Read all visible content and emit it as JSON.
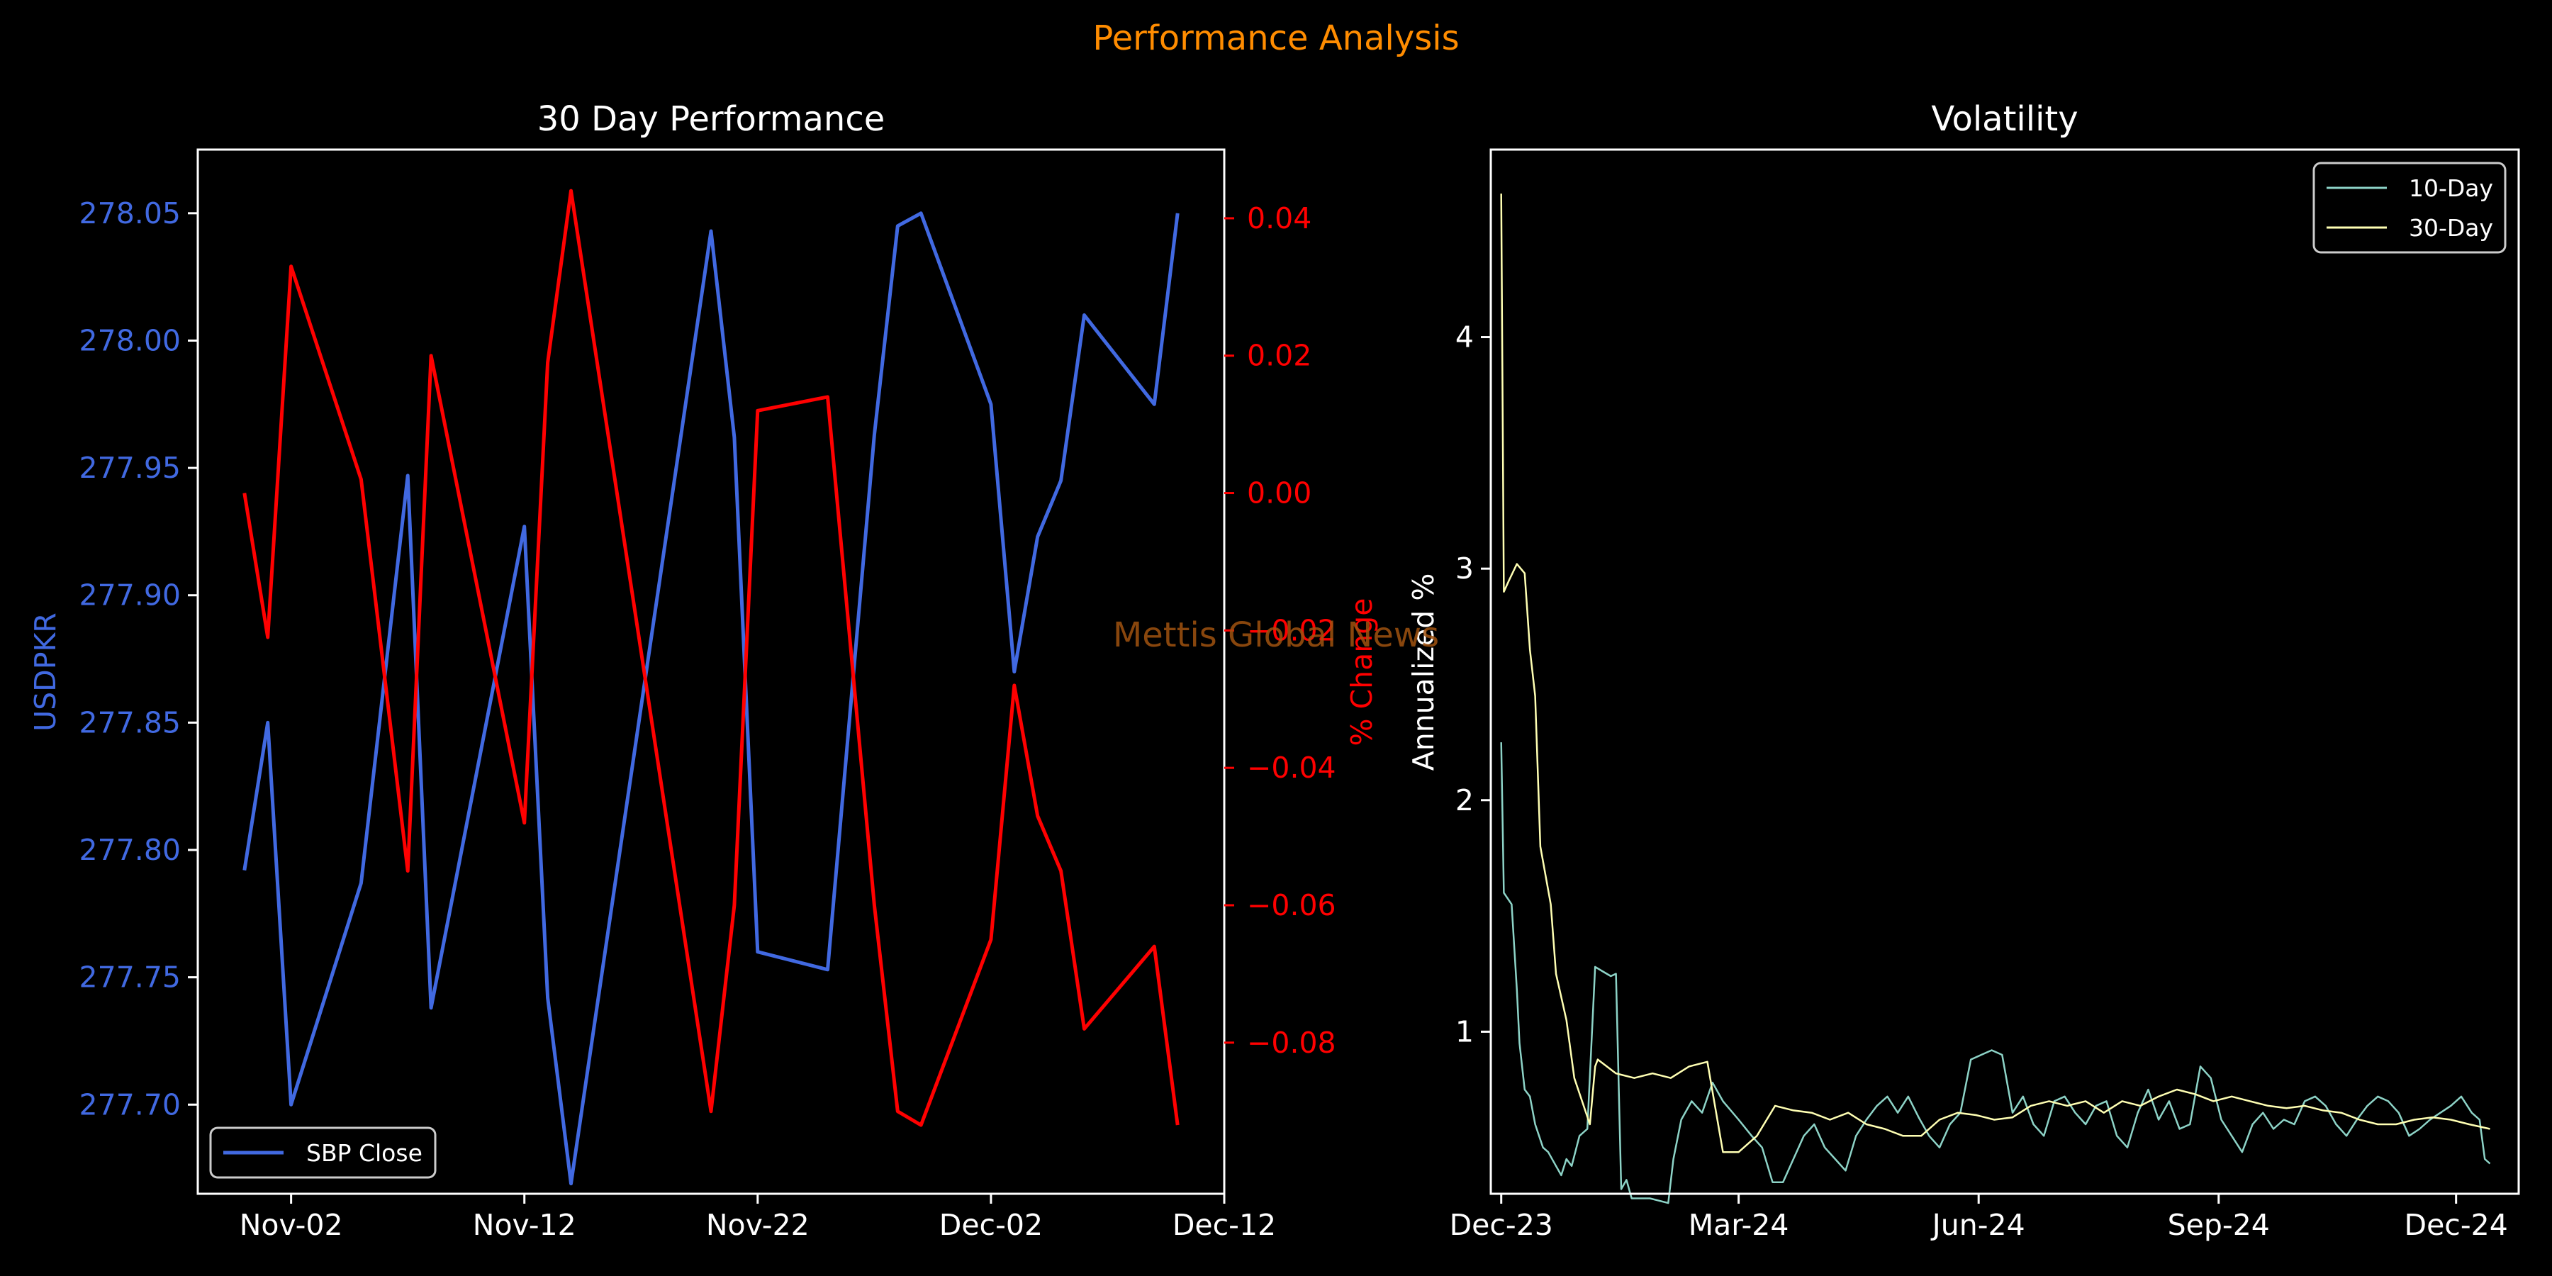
{
  "suptitle": "Performance Analysis",
  "watermark": "Mettis Global News",
  "colors": {
    "background": "#000000",
    "suptitle": "#ff8c00",
    "watermark": "#a0520f",
    "text": "#ffffff",
    "price": "#4169e1",
    "pct": "#ff0000",
    "vol10": "#8dd3c7",
    "vol30": "#ffffb3"
  },
  "chart_data": [
    {
      "type": "line",
      "title": "30 Day Performance",
      "xlabel": "",
      "xticks": [
        "Nov-02",
        "Nov-12",
        "Nov-22",
        "Dec-02",
        "Dec-12"
      ],
      "xlim": [
        "2024-10-29",
        "2024-12-12"
      ],
      "y_left": {
        "label": "USDPKR",
        "ticks": [
          "277.70",
          "277.75",
          "277.80",
          "277.85",
          "277.90",
          "277.95",
          "278.00",
          "278.05"
        ],
        "lim": [
          277.665,
          278.075
        ]
      },
      "y_right": {
        "label": "% Change",
        "ticks": [
          "0.04",
          "0.02",
          "0.00",
          "−0.02",
          "−0.04",
          "−0.06",
          "−0.08"
        ],
        "lim": [
          -0.102,
          0.05
        ]
      },
      "legend": {
        "position": "lower-left",
        "entries": [
          "SBP Close"
        ]
      },
      "grid": false,
      "series": [
        {
          "name": "SBP Close",
          "axis": "left",
          "x": [
            "2024-10-31",
            "2024-11-01",
            "2024-11-02",
            "2024-11-05",
            "2024-11-07",
            "2024-11-08",
            "2024-11-12",
            "2024-11-13",
            "2024-11-14",
            "2024-11-20",
            "2024-11-21",
            "2024-11-22",
            "2024-11-25",
            "2024-11-27",
            "2024-11-28",
            "2024-11-29",
            "2024-12-02",
            "2024-12-03",
            "2024-12-04",
            "2024-12-05",
            "2024-12-06",
            "2024-12-09",
            "2024-12-10"
          ],
          "values": [
            277.792,
            277.85,
            277.7,
            277.787,
            277.947,
            277.738,
            277.927,
            277.742,
            277.669,
            278.043,
            277.962,
            277.76,
            277.753,
            277.963,
            278.045,
            278.05,
            277.975,
            277.87,
            277.923,
            277.945,
            278.01,
            277.975,
            278.05
          ]
        },
        {
          "name": "% Change",
          "axis": "right",
          "x": [
            "2024-10-31",
            "2024-11-01",
            "2024-11-02",
            "2024-11-05",
            "2024-11-07",
            "2024-11-08",
            "2024-11-12",
            "2024-11-13",
            "2024-11-14",
            "2024-11-20",
            "2024-11-21",
            "2024-11-22",
            "2024-11-25",
            "2024-11-27",
            "2024-11-28",
            "2024-11-29",
            "2024-12-02",
            "2024-12-03",
            "2024-12-04",
            "2024-12-05",
            "2024-12-06",
            "2024-12-09",
            "2024-12-10"
          ],
          "values": [
            0.0,
            -0.021,
            0.033,
            0.002,
            -0.055,
            0.02,
            -0.048,
            0.019,
            0.044,
            -0.09,
            -0.06,
            0.012,
            0.014,
            -0.06,
            -0.09,
            -0.092,
            -0.065,
            -0.028,
            -0.047,
            -0.055,
            -0.078,
            -0.066,
            -0.092
          ]
        }
      ]
    },
    {
      "type": "line",
      "title": "Volatility",
      "xlabel": "",
      "ylabel": "Annualized %",
      "xticks": [
        "Dec-23",
        "Mar-24",
        "Jun-24",
        "Sep-24",
        "Dec-24"
      ],
      "yticks": [
        "1",
        "2",
        "3",
        "4"
      ],
      "xlim": [
        "2023-11-27",
        "2024-12-25"
      ],
      "ylim": [
        0.3,
        4.81
      ],
      "legend": {
        "position": "upper-right",
        "entries": [
          "10-Day",
          "30-Day"
        ]
      },
      "grid": false,
      "series": [
        {
          "name": "10-Day",
          "x": [
            "2023-12-01",
            "2023-12-02",
            "2023-12-05",
            "2023-12-07",
            "2023-12-08",
            "2023-12-10",
            "2023-12-12",
            "2023-12-14",
            "2023-12-17",
            "2023-12-19",
            "2023-12-22",
            "2023-12-24",
            "2023-12-26",
            "2023-12-28",
            "2023-12-31",
            "2024-01-03",
            "2024-01-06",
            "2024-01-09",
            "2024-01-12",
            "2024-01-14",
            "2024-01-16",
            "2024-01-18",
            "2024-01-20",
            "2024-01-27",
            "2024-02-03",
            "2024-02-05",
            "2024-02-08",
            "2024-02-12",
            "2024-02-16",
            "2024-02-20",
            "2024-02-24",
            "2024-03-01",
            "2024-03-06",
            "2024-03-10",
            "2024-03-14",
            "2024-03-18",
            "2024-03-22",
            "2024-03-26",
            "2024-03-30",
            "2024-04-03",
            "2024-04-07",
            "2024-04-11",
            "2024-04-15",
            "2024-04-19",
            "2024-04-23",
            "2024-04-27",
            "2024-05-01",
            "2024-05-05",
            "2024-05-09",
            "2024-05-13",
            "2024-05-17",
            "2024-05-21",
            "2024-05-25",
            "2024-05-29",
            "2024-06-02",
            "2024-06-06",
            "2024-06-10",
            "2024-06-14",
            "2024-06-18",
            "2024-06-22",
            "2024-06-26",
            "2024-06-30",
            "2024-07-04",
            "2024-07-08",
            "2024-07-12",
            "2024-07-16",
            "2024-07-20",
            "2024-07-24",
            "2024-07-28",
            "2024-08-01",
            "2024-08-05",
            "2024-08-09",
            "2024-08-13",
            "2024-08-17",
            "2024-08-21",
            "2024-08-25",
            "2024-08-29",
            "2024-09-02",
            "2024-09-06",
            "2024-09-10",
            "2024-09-14",
            "2024-09-18",
            "2024-09-22",
            "2024-09-26",
            "2024-09-30",
            "2024-10-04",
            "2024-10-08",
            "2024-10-12",
            "2024-10-16",
            "2024-10-20",
            "2024-10-24",
            "2024-10-28",
            "2024-11-01",
            "2024-11-05",
            "2024-11-09",
            "2024-11-13",
            "2024-11-17",
            "2024-11-21",
            "2024-11-25",
            "2024-11-29",
            "2024-12-03",
            "2024-12-07",
            "2024-12-10",
            "2024-12-12",
            "2024-12-14"
          ],
          "values": [
            2.25,
            1.6,
            1.55,
            1.18,
            0.95,
            0.75,
            0.72,
            0.6,
            0.5,
            0.48,
            0.42,
            0.38,
            0.45,
            0.42,
            0.55,
            0.58,
            1.28,
            1.26,
            1.24,
            1.25,
            0.32,
            0.36,
            0.28,
            0.28,
            0.26,
            0.45,
            0.62,
            0.7,
            0.65,
            0.78,
            0.7,
            0.62,
            0.55,
            0.5,
            0.35,
            0.35,
            0.45,
            0.55,
            0.6,
            0.5,
            0.45,
            0.4,
            0.55,
            0.62,
            0.68,
            0.72,
            0.65,
            0.72,
            0.63,
            0.55,
            0.5,
            0.6,
            0.65,
            0.88,
            0.9,
            0.92,
            0.9,
            0.65,
            0.72,
            0.6,
            0.55,
            0.7,
            0.72,
            0.65,
            0.6,
            0.68,
            0.7,
            0.55,
            0.5,
            0.65,
            0.75,
            0.62,
            0.7,
            0.58,
            0.6,
            0.85,
            0.8,
            0.62,
            0.55,
            0.48,
            0.6,
            0.65,
            0.58,
            0.62,
            0.6,
            0.7,
            0.72,
            0.68,
            0.6,
            0.55,
            0.62,
            0.68,
            0.72,
            0.7,
            0.65,
            0.55,
            0.58,
            0.62,
            0.65,
            0.68,
            0.72,
            0.65,
            0.62,
            0.45,
            0.43
          ]
        },
        {
          "name": "30-Day",
          "x": [
            "2023-12-01",
            "2023-12-02",
            "2023-12-04",
            "2023-12-07",
            "2023-12-10",
            "2023-12-12",
            "2023-12-14",
            "2023-12-16",
            "2023-12-20",
            "2023-12-22",
            "2023-12-26",
            "2023-12-29",
            "2024-01-01",
            "2024-01-04",
            "2024-01-06",
            "2024-01-07",
            "2024-01-14",
            "2024-01-21",
            "2024-01-28",
            "2024-02-04",
            "2024-02-11",
            "2024-02-18",
            "2024-02-24",
            "2024-03-01",
            "2024-03-08",
            "2024-03-15",
            "2024-03-22",
            "2024-03-29",
            "2024-04-05",
            "2024-04-12",
            "2024-04-19",
            "2024-04-26",
            "2024-05-03",
            "2024-05-10",
            "2024-05-17",
            "2024-05-24",
            "2024-05-31",
            "2024-06-07",
            "2024-06-14",
            "2024-06-21",
            "2024-06-28",
            "2024-07-05",
            "2024-07-12",
            "2024-07-19",
            "2024-07-26",
            "2024-08-02",
            "2024-08-09",
            "2024-08-16",
            "2024-08-23",
            "2024-08-30",
            "2024-09-06",
            "2024-09-13",
            "2024-09-20",
            "2024-09-27",
            "2024-10-04",
            "2024-10-11",
            "2024-10-18",
            "2024-10-25",
            "2024-11-01",
            "2024-11-08",
            "2024-11-15",
            "2024-11-22",
            "2024-11-29",
            "2024-12-06",
            "2024-12-14"
          ],
          "values": [
            4.62,
            2.9,
            2.95,
            3.02,
            2.98,
            2.65,
            2.45,
            1.8,
            1.55,
            1.25,
            1.05,
            0.8,
            0.7,
            0.6,
            0.85,
            0.88,
            0.82,
            0.8,
            0.82,
            0.8,
            0.85,
            0.87,
            0.48,
            0.48,
            0.55,
            0.68,
            0.66,
            0.65,
            0.62,
            0.65,
            0.6,
            0.58,
            0.55,
            0.55,
            0.62,
            0.65,
            0.64,
            0.62,
            0.63,
            0.68,
            0.7,
            0.68,
            0.7,
            0.65,
            0.7,
            0.68,
            0.72,
            0.75,
            0.73,
            0.7,
            0.72,
            0.7,
            0.68,
            0.67,
            0.68,
            0.66,
            0.65,
            0.62,
            0.6,
            0.6,
            0.62,
            0.63,
            0.62,
            0.6,
            0.58
          ]
        }
      ]
    }
  ]
}
